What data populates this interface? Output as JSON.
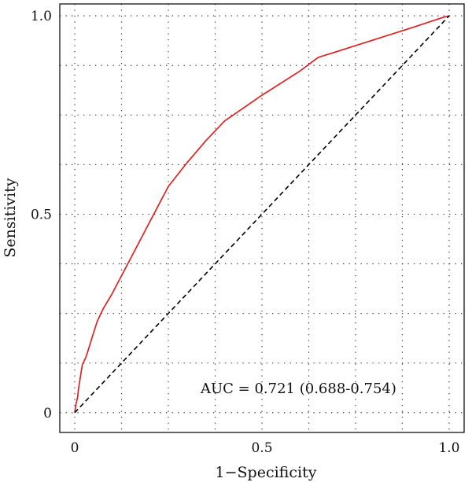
{
  "chart_data": {
    "type": "line",
    "title": "",
    "xlabel": "1−Specificity",
    "ylabel": "Sensitivity",
    "xlim": [
      -0.04,
      1.04
    ],
    "ylim": [
      -0.05,
      1.03
    ],
    "x_ticks": [
      {
        "value": 0,
        "label": "0"
      },
      {
        "value": 0.5,
        "label": "0.5"
      },
      {
        "value": 1,
        "label": "1.0"
      }
    ],
    "y_ticks": [
      {
        "value": 0,
        "label": "0"
      },
      {
        "value": 0.5,
        "label": "0.5"
      },
      {
        "value": 1,
        "label": "1.0"
      }
    ],
    "grid": true,
    "grid_x": [
      0,
      0.125,
      0.25,
      0.375,
      0.5,
      0.625,
      0.75,
      0.875,
      1.0
    ],
    "grid_y": [
      0,
      0.125,
      0.25,
      0.375,
      0.5,
      0.625,
      0.75,
      0.875,
      1.0
    ],
    "annotation": "AUC = 0.721 (0.688-0.754)",
    "annotation_position": {
      "x": 0.33,
      "y": 0.06
    },
    "series": [
      {
        "color": "#e02020",
        "style": "solid",
        "x": [
          0,
          0.003,
          0.008,
          0.01,
          0.015,
          0.02,
          0.03,
          0.04,
          0.05,
          0.06,
          0.075,
          0.1,
          0.15,
          0.2,
          0.25,
          0.3,
          0.35,
          0.4,
          0.5,
          0.6,
          0.65,
          0.7,
          0.8,
          0.9,
          0.98,
          1.0
        ],
        "y": [
          0,
          0.02,
          0.04,
          0.06,
          0.09,
          0.12,
          0.14,
          0.17,
          0.2,
          0.23,
          0.26,
          0.3,
          0.39,
          0.48,
          0.57,
          0.63,
          0.685,
          0.735,
          0.8,
          0.86,
          0.895,
          0.91,
          0.94,
          0.97,
          0.995,
          1.0
        ]
      },
      {
        "color": "#000000",
        "style": "dashed",
        "x": [
          0,
          1
        ],
        "y": [
          0,
          1
        ]
      }
    ]
  }
}
